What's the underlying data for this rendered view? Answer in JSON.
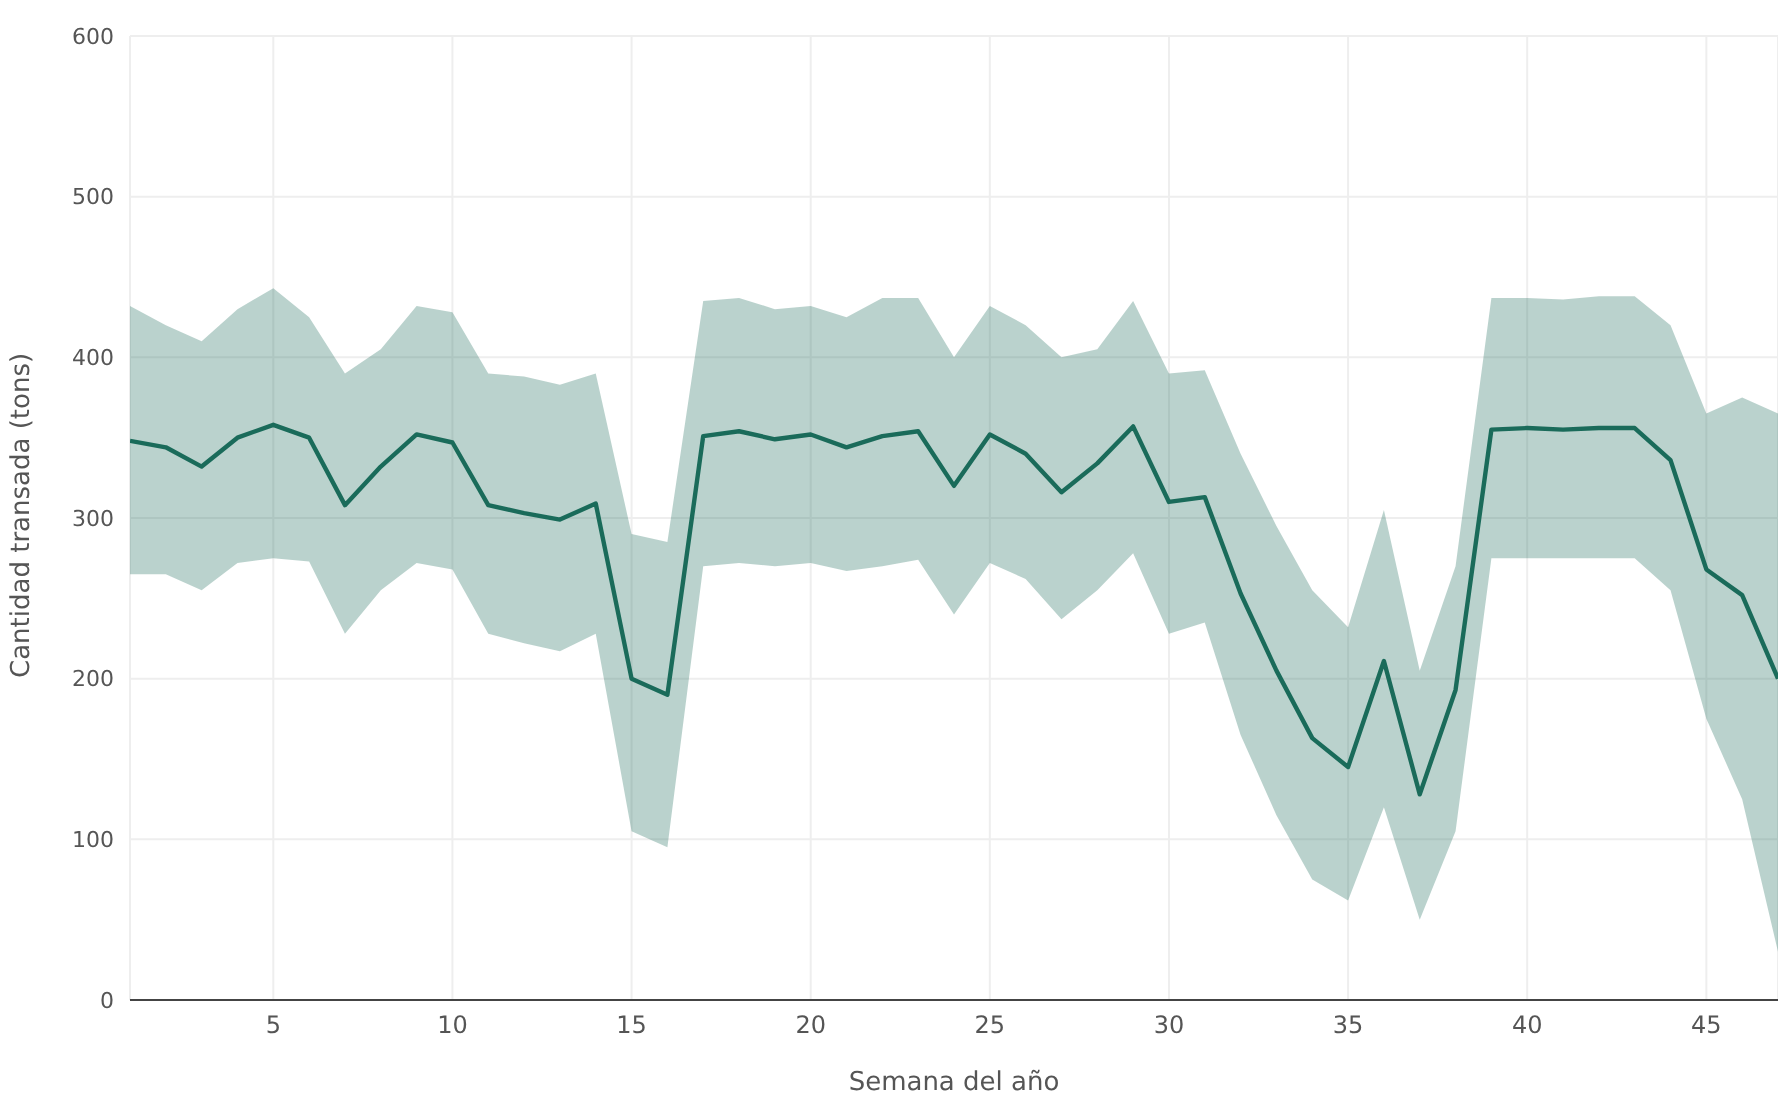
{
  "chart_data": {
    "type": "line",
    "xlabel": "Semana del año",
    "ylabel": "Cantidad transada (tons)",
    "x": [
      1,
      2,
      3,
      4,
      5,
      6,
      7,
      8,
      9,
      10,
      11,
      12,
      13,
      14,
      15,
      16,
      17,
      18,
      19,
      20,
      21,
      22,
      23,
      24,
      25,
      26,
      27,
      28,
      29,
      30,
      31,
      32,
      33,
      34,
      35,
      36,
      37,
      38,
      39,
      40,
      41,
      42,
      43,
      44,
      45,
      46,
      47
    ],
    "series": [
      {
        "color": "#1a6b5a",
        "values": [
          348,
          344,
          332,
          350,
          358,
          350,
          308,
          332,
          352,
          347,
          308,
          303,
          299,
          309,
          200,
          190,
          351,
          354,
          349,
          352,
          344,
          351,
          354,
          320,
          352,
          340,
          316,
          334,
          357,
          310,
          313,
          253,
          205,
          163,
          145,
          211,
          128,
          193,
          355,
          356,
          355,
          356,
          356,
          336,
          268,
          252,
          200
        ],
        "lower": [
          265,
          265,
          255,
          272,
          275,
          273,
          228,
          255,
          272,
          268,
          228,
          222,
          217,
          228,
          105,
          95,
          270,
          272,
          270,
          272,
          267,
          270,
          274,
          240,
          272,
          262,
          237,
          255,
          278,
          228,
          235,
          165,
          115,
          75,
          62,
          120,
          50,
          105,
          275,
          275,
          275,
          275,
          275,
          255,
          175,
          125,
          30
        ],
        "upper": [
          432,
          420,
          410,
          430,
          443,
          425,
          390,
          405,
          432,
          428,
          390,
          388,
          383,
          390,
          290,
          285,
          435,
          437,
          430,
          432,
          425,
          437,
          437,
          400,
          432,
          420,
          400,
          405,
          435,
          390,
          392,
          340,
          295,
          255,
          232,
          305,
          205,
          270,
          437,
          437,
          436,
          438,
          438,
          420,
          365,
          375,
          365
        ]
      }
    ],
    "xlim": [
      1,
      47
    ],
    "xticks": [
      5,
      10,
      15,
      20,
      25,
      30,
      35,
      40,
      45
    ],
    "ylim": [
      0,
      600
    ],
    "yticks": [
      0,
      100,
      200,
      300,
      400,
      500,
      600
    ],
    "grid": true,
    "marker": "none",
    "line_style": "solid"
  }
}
